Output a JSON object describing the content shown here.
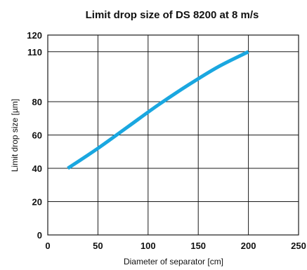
{
  "chart_data": {
    "type": "line",
    "title": "Limit drop size of DS 8200 at 8 m/s",
    "xlabel": "Diameter of separator [cm]",
    "ylabel": "Limit drop size [µm]",
    "xlim": [
      0,
      250
    ],
    "ylim": [
      0,
      120
    ],
    "xticks": [
      "0",
      "50",
      "100",
      "150",
      "200",
      "250"
    ],
    "yticks": [
      "0",
      "20",
      "40",
      "60",
      "80",
      "110",
      "120"
    ],
    "ytick_values": [
      0,
      20,
      40,
      60,
      80,
      110,
      120
    ],
    "grid": true,
    "series": [
      {
        "color": "#1aa7e0",
        "x": [
          20,
          50,
          80,
          110,
          140,
          170,
          200
        ],
        "y": [
          40,
          52,
          65,
          78,
          90,
          101,
          110
        ]
      }
    ]
  }
}
